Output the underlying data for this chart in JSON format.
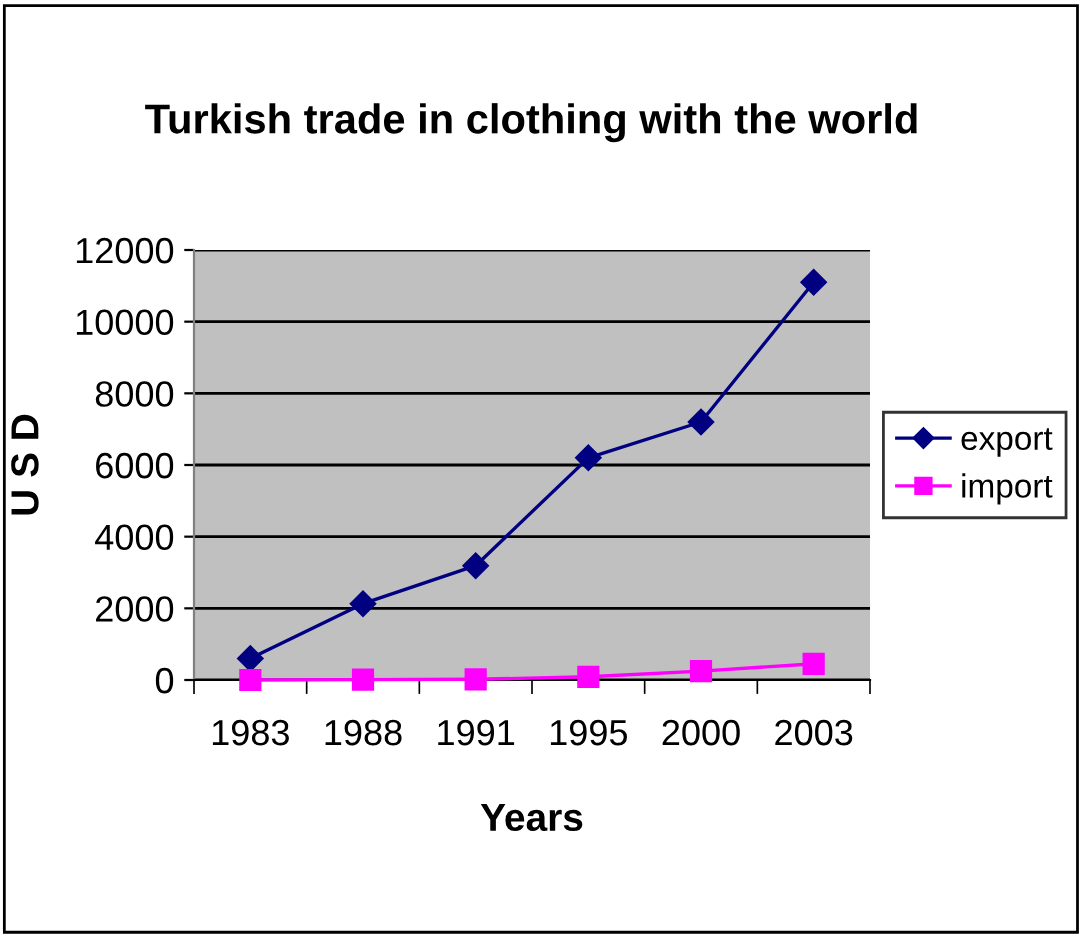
{
  "chart_data": {
    "type": "line",
    "title": "Turkish trade in clothing with the world",
    "xlabel": "Years",
    "ylabel": "U S D",
    "categories": [
      "1983",
      "1988",
      "1991",
      "1995",
      "2000",
      "2003"
    ],
    "series": [
      {
        "name": "export",
        "color": "#000080",
        "marker": "diamond",
        "values": [
          600,
          2130,
          3190,
          6200,
          7200,
          11100
        ]
      },
      {
        "name": "import",
        "color": "#ff00ff",
        "marker": "square",
        "values": [
          0,
          10,
          20,
          90,
          250,
          450
        ]
      }
    ],
    "ylim": [
      0,
      12000
    ],
    "yticks": [
      0,
      2000,
      4000,
      6000,
      8000,
      10000,
      12000
    ],
    "grid": "y",
    "legend": "right"
  }
}
